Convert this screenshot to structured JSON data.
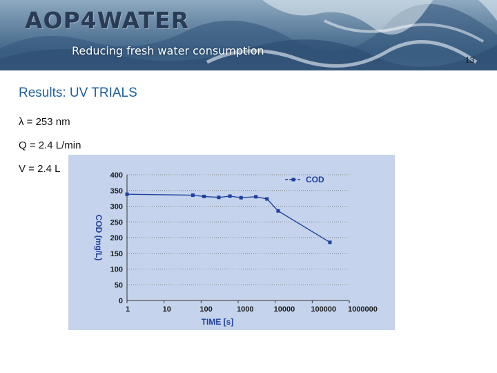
{
  "header": {
    "brand": "AOP4WATER",
    "tagline": "Reducing fresh water consumption",
    "page_number": "13"
  },
  "slide": {
    "title": "Results: UV TRIALS",
    "params": [
      "λ = 253 nm",
      "Q = 2.4 L/min",
      "V = 2.4 L"
    ]
  },
  "colors": {
    "title": "#1f5f99",
    "chart_background": "#c5d4ec",
    "series": "#1f3fa0"
  },
  "chart_data": {
    "type": "line",
    "xlabel": "TIME [s]",
    "ylabel": "COD (mg/L)",
    "xscale": "log",
    "xlim": [
      1,
      1000000
    ],
    "ylim": [
      0,
      400
    ],
    "x_ticks": [
      "1",
      "10",
      "100",
      "1000",
      "10000",
      "100000",
      "1000000"
    ],
    "y_ticks": [
      "0",
      "50",
      "100",
      "150",
      "200",
      "250",
      "300",
      "350",
      "400"
    ],
    "legend_position": "top-right",
    "grid": true,
    "series": [
      {
        "name": "COD",
        "x": [
          1,
          60,
          120,
          300,
          600,
          1200,
          3000,
          6000,
          12000,
          300000
        ],
        "y": [
          338,
          335,
          331,
          328,
          332,
          327,
          330,
          323,
          285,
          185
        ]
      }
    ]
  }
}
